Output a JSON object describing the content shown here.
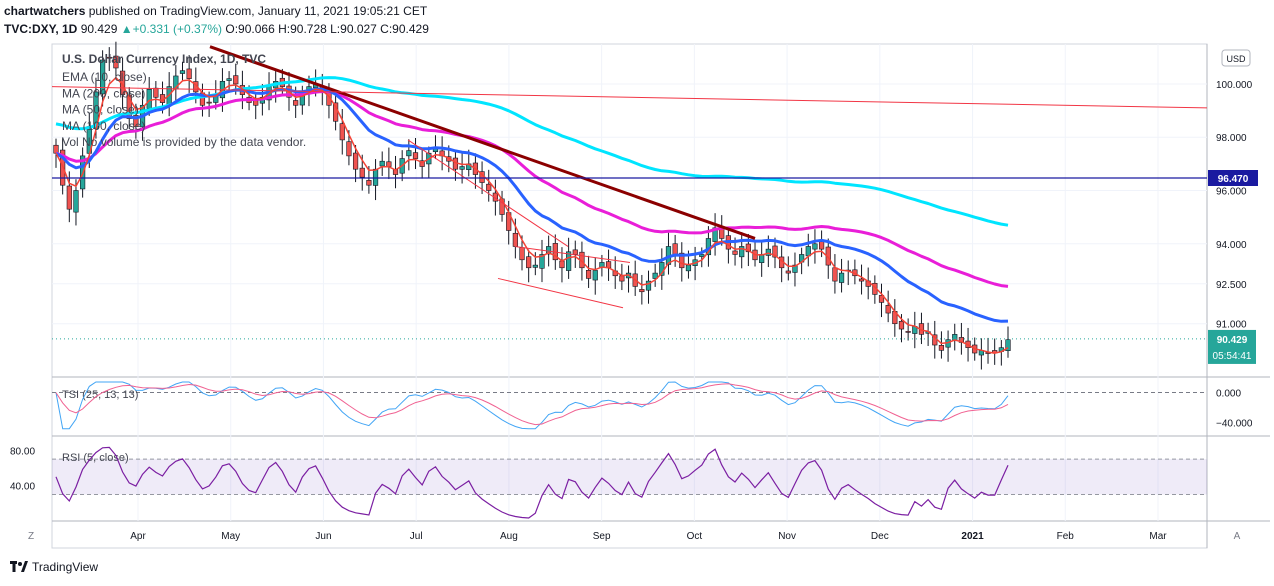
{
  "header": {
    "line1": "chartwatchers published on TradingView.com, January 11, 2021 19:05:21 CET",
    "line1_bold": "chartwatchers",
    "symbol": "TVC:DXY, 1D",
    "last": "90.429",
    "change": "+0.331 (+0.37%)",
    "ohlc": "O:90.066 H:90.728 L:90.027 C:90.429"
  },
  "chart_data": {
    "type": "candlestick",
    "title": "U.S. Dollar Currency Index, 1D, TVC",
    "currency": "USD",
    "legend": [
      "EMA (10, close)",
      "MA (200, close)",
      "MA (50, close)",
      "MA (100, close)",
      "Vol  No volume is provided by the data vendor."
    ],
    "x_ticks": [
      "Apr",
      "May",
      "Jun",
      "Jul",
      "Aug",
      "Sep",
      "Oct",
      "Nov",
      "Dec",
      "2021",
      "Feb",
      "Mar"
    ],
    "y_ticks": [
      "100.000",
      "98.000",
      "96.000",
      "94.000",
      "92.500",
      "91.000"
    ],
    "ylim": [
      89.0,
      101.5
    ],
    "last_price": {
      "value": 90.429,
      "label": "90.429",
      "countdown": "05:54:41"
    },
    "level_label": {
      "value": 96.47,
      "label": "96.470"
    },
    "closes": [
      97.4,
      96.2,
      95.3,
      96.0,
      97.3,
      98.4,
      99.7,
      100.9,
      101.0,
      100.6,
      99.6,
      98.7,
      98.4,
      99.2,
      99.8,
      99.5,
      99.3,
      99.9,
      100.3,
      100.5,
      100.2,
      99.7,
      99.2,
      99.3,
      99.6,
      100.1,
      100.2,
      100.0,
      99.6,
      99.3,
      99.2,
      99.5,
      99.9,
      100.1,
      99.9,
      99.5,
      99.2,
      99.6,
      99.9,
      100.0,
      99.7,
      99.2,
      98.6,
      97.9,
      97.3,
      96.8,
      96.5,
      96.2,
      96.8,
      97.1,
      96.9,
      96.6,
      97.2,
      97.5,
      97.2,
      96.9,
      97.4,
      97.6,
      97.3,
      97.1,
      96.8,
      96.9,
      97.0,
      96.6,
      96.3,
      96.0,
      95.6,
      95.1,
      94.5,
      93.9,
      93.4,
      93.1,
      93.2,
      93.6,
      93.9,
      93.4,
      93.1,
      93.7,
      93.6,
      93.1,
      92.7,
      93.0,
      93.3,
      93.1,
      92.8,
      92.6,
      92.9,
      92.4,
      92.2,
      92.6,
      92.9,
      93.3,
      93.9,
      93.6,
      93.1,
      93.2,
      93.4,
      93.6,
      94.2,
      94.6,
      94.2,
      93.8,
      93.6,
      93.9,
      93.7,
      93.4,
      93.6,
      93.8,
      93.5,
      93.1,
      92.9,
      93.2,
      93.6,
      93.9,
      94.0,
      93.8,
      93.2,
      92.6,
      92.9,
      93.0,
      92.8,
      92.6,
      92.4,
      92.1,
      91.8,
      91.4,
      91.0,
      90.8,
      90.7,
      90.9,
      90.6,
      90.7,
      90.2,
      90.0,
      90.4,
      90.6,
      90.3,
      90.1,
      89.9,
      90.0,
      89.9,
      89.9,
      90.1,
      90.4
    ],
    "ema10_end": 90.1,
    "ma50_end": 91.1,
    "ma100_end": 92.4,
    "ma200_end": 94.7,
    "tsi": {
      "label": "TSI (25, 13, 13)",
      "y_ticks": [
        "0.000",
        "−40.000"
      ],
      "ylim": [
        -55,
        18
      ]
    },
    "rsi": {
      "label": "RSI (5, close)",
      "y_ticks": [
        "80.00",
        "40.00"
      ],
      "band": [
        30,
        70
      ],
      "ylim": [
        0,
        95
      ]
    },
    "colors": {
      "up": "#26a69a",
      "down": "#ef5350",
      "ema10": "#f44336",
      "ma50": "#2962ff",
      "ma100": "#e91ed8",
      "ma200": "#00e5ff",
      "trend_dark": "#8b0000",
      "trend_light": "#f23645",
      "level": "#1a1aa0",
      "rsi": "#7b1fa2",
      "tsi_fast": "#42a5f5",
      "tsi_slow": "#f06292"
    }
  },
  "footer": {
    "brand": "TradingView"
  }
}
